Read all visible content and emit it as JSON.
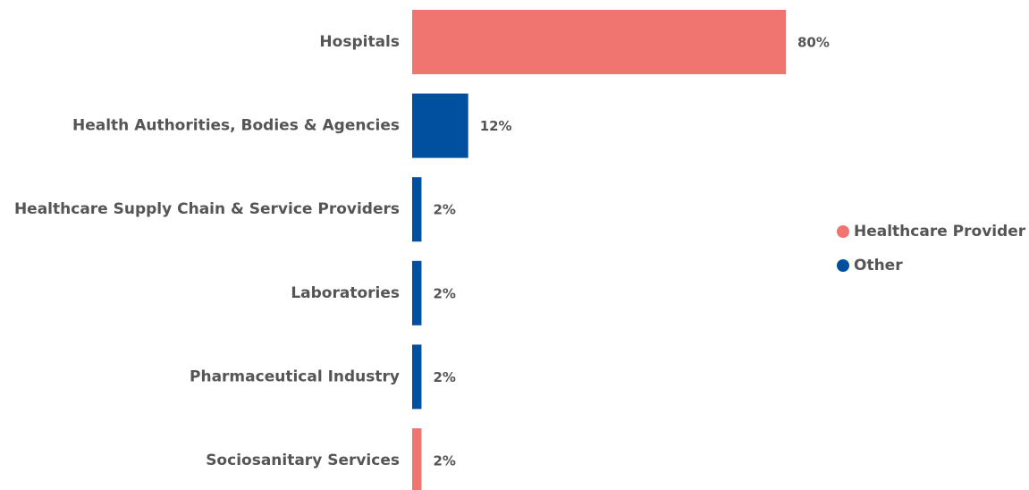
{
  "chart_data": {
    "type": "bar",
    "orientation": "horizontal",
    "categories": [
      "Hospitals",
      "Health Authorities, Bodies & Agencies",
      "Healthcare Supply Chain & Service Providers",
      "Laboratories",
      "Pharmaceutical Industry",
      "Sociosanitary Services"
    ],
    "series": [
      {
        "name": "Healthcare Provider",
        "color": "#f07470",
        "values": [
          80,
          null,
          null,
          null,
          null,
          2
        ],
        "value_labels": [
          "80%",
          null,
          null,
          null,
          null,
          "2%"
        ]
      },
      {
        "name": "Other",
        "color": "#0050a0",
        "values": [
          null,
          12,
          2,
          2,
          2,
          null
        ],
        "value_labels": [
          null,
          "12%",
          "2%",
          "2%",
          "2%",
          null
        ]
      }
    ],
    "legend": "right"
  }
}
